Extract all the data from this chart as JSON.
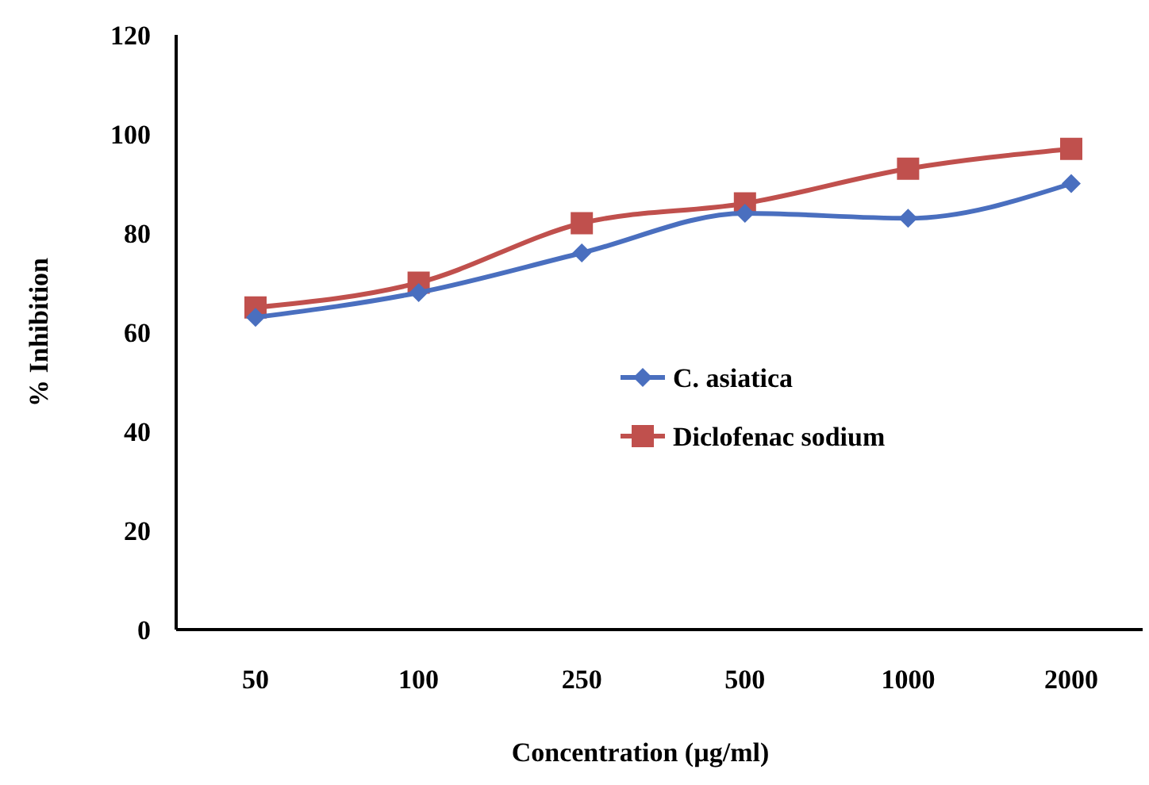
{
  "chart_data": {
    "type": "line",
    "xlabel": "Concentration (µg/ml)",
    "ylabel": "% Inhibition",
    "categories": [
      "50",
      "100",
      "250",
      "500",
      "1000",
      "2000"
    ],
    "ylim": [
      0,
      120
    ],
    "yticks": [
      0,
      20,
      40,
      60,
      80,
      100,
      120
    ],
    "grid": false,
    "legend": "right",
    "series": [
      {
        "name": "C. asiatica",
        "color": "#4a6fbf",
        "marker": "diamond",
        "values": [
          63,
          68,
          76,
          84,
          83,
          90
        ]
      },
      {
        "name": "Diclofenac sodium",
        "color": "#c0504d",
        "marker": "square",
        "values": [
          65,
          70,
          82,
          86,
          93,
          97
        ]
      }
    ]
  }
}
